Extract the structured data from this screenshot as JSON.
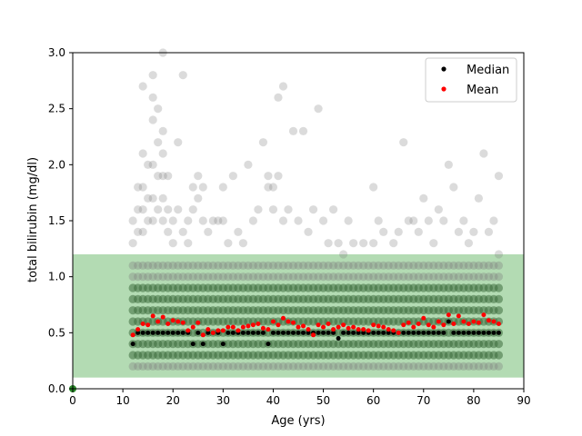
{
  "chart_data": {
    "type": "scatter",
    "title": "",
    "xlabel": "Age (yrs)",
    "ylabel": "total bilirubin (mg/dl)",
    "xlim": [
      0,
      90
    ],
    "ylim": [
      0,
      3.0
    ],
    "xticks": [
      "0",
      "10",
      "20",
      "30",
      "40",
      "50",
      "60",
      "70",
      "80",
      "90"
    ],
    "yticks": [
      "0.0",
      "0.5",
      "1.0",
      "1.5",
      "2.0",
      "2.5",
      "3.0"
    ],
    "reference_band": {
      "y_low": 0.1,
      "y_high": 1.2,
      "color": "#b3dbb3"
    },
    "grid": false,
    "legend_position": "top-right",
    "colors": {
      "raw_points": "#7f7f7f",
      "dense_points": "#3d6b3d",
      "median": "#000000",
      "mean": "#ff0000"
    },
    "ages": [
      12,
      13,
      14,
      15,
      16,
      17,
      18,
      19,
      20,
      21,
      22,
      23,
      24,
      25,
      26,
      27,
      28,
      29,
      30,
      31,
      32,
      33,
      34,
      35,
      36,
      37,
      38,
      39,
      40,
      41,
      42,
      43,
      44,
      45,
      46,
      47,
      48,
      49,
      50,
      51,
      52,
      53,
      54,
      55,
      56,
      57,
      58,
      59,
      60,
      61,
      62,
      63,
      64,
      65,
      66,
      67,
      68,
      69,
      70,
      71,
      72,
      73,
      74,
      75,
      76,
      77,
      78,
      79,
      80,
      81,
      82,
      83,
      84,
      85
    ],
    "raw_levels": [
      0.2,
      0.3,
      0.4,
      0.5,
      0.6,
      0.7,
      0.8,
      0.9,
      1.0,
      1.1
    ],
    "outliers": [
      [
        12,
        1.5
      ],
      [
        12,
        1.3
      ],
      [
        13,
        1.8
      ],
      [
        13,
        1.6
      ],
      [
        13,
        1.4
      ],
      [
        14,
        2.7
      ],
      [
        14,
        2.1
      ],
      [
        14,
        1.8
      ],
      [
        14,
        1.6
      ],
      [
        14,
        1.4
      ],
      [
        15,
        2.0
      ],
      [
        15,
        1.7
      ],
      [
        15,
        1.5
      ],
      [
        16,
        2.8
      ],
      [
        16,
        2.6
      ],
      [
        16,
        2.4
      ],
      [
        16,
        2.0
      ],
      [
        16,
        1.7
      ],
      [
        16,
        1.5
      ],
      [
        17,
        2.5
      ],
      [
        17,
        2.2
      ],
      [
        17,
        1.9
      ],
      [
        17,
        1.6
      ],
      [
        18,
        3.0
      ],
      [
        18,
        2.3
      ],
      [
        18,
        2.1
      ],
      [
        18,
        1.9
      ],
      [
        18,
        1.7
      ],
      [
        18,
        1.5
      ],
      [
        19,
        1.9
      ],
      [
        19,
        1.6
      ],
      [
        19,
        1.4
      ],
      [
        20,
        1.5
      ],
      [
        20,
        1.3
      ],
      [
        21,
        2.2
      ],
      [
        21,
        1.6
      ],
      [
        22,
        2.8
      ],
      [
        22,
        1.4
      ],
      [
        23,
        1.5
      ],
      [
        23,
        1.3
      ],
      [
        24,
        1.8
      ],
      [
        24,
        1.6
      ],
      [
        25,
        1.9
      ],
      [
        25,
        1.7
      ],
      [
        26,
        1.8
      ],
      [
        26,
        1.5
      ],
      [
        27,
        1.4
      ],
      [
        28,
        1.5
      ],
      [
        29,
        1.5
      ],
      [
        30,
        1.5
      ],
      [
        30,
        1.8
      ],
      [
        31,
        1.3
      ],
      [
        32,
        1.9
      ],
      [
        33,
        1.4
      ],
      [
        34,
        1.3
      ],
      [
        35,
        2.0
      ],
      [
        36,
        1.5
      ],
      [
        37,
        1.6
      ],
      [
        38,
        2.2
      ],
      [
        39,
        1.8
      ],
      [
        39,
        1.9
      ],
      [
        40,
        1.8
      ],
      [
        40,
        1.6
      ],
      [
        41,
        2.6
      ],
      [
        41,
        1.9
      ],
      [
        42,
        2.7
      ],
      [
        42,
        1.5
      ],
      [
        43,
        1.6
      ],
      [
        44,
        2.3
      ],
      [
        45,
        1.5
      ],
      [
        46,
        2.3
      ],
      [
        47,
        1.4
      ],
      [
        48,
        1.6
      ],
      [
        49,
        2.5
      ],
      [
        50,
        1.5
      ],
      [
        51,
        1.3
      ],
      [
        52,
        1.6
      ],
      [
        53,
        1.3
      ],
      [
        54,
        1.2
      ],
      [
        55,
        1.5
      ],
      [
        56,
        1.3
      ],
      [
        58,
        1.3
      ],
      [
        60,
        1.8
      ],
      [
        60,
        1.3
      ],
      [
        61,
        1.5
      ],
      [
        62,
        1.4
      ],
      [
        64,
        1.3
      ],
      [
        65,
        1.4
      ],
      [
        66,
        2.2
      ],
      [
        67,
        1.5
      ],
      [
        68,
        1.5
      ],
      [
        69,
        1.4
      ],
      [
        70,
        1.7
      ],
      [
        71,
        1.5
      ],
      [
        72,
        1.3
      ],
      [
        73,
        1.6
      ],
      [
        74,
        1.5
      ],
      [
        75,
        2.0
      ],
      [
        76,
        1.8
      ],
      [
        77,
        1.4
      ],
      [
        78,
        1.5
      ],
      [
        79,
        1.3
      ],
      [
        80,
        1.4
      ],
      [
        81,
        1.7
      ],
      [
        82,
        2.1
      ],
      [
        83,
        1.4
      ],
      [
        84,
        1.5
      ],
      [
        85,
        1.9
      ],
      [
        85,
        1.2
      ]
    ],
    "series": [
      {
        "name": "Median",
        "x": [
          12,
          13,
          14,
          15,
          16,
          17,
          18,
          19,
          20,
          21,
          22,
          23,
          24,
          25,
          26,
          27,
          28,
          29,
          30,
          31,
          32,
          33,
          34,
          35,
          36,
          37,
          38,
          39,
          40,
          41,
          42,
          43,
          44,
          45,
          46,
          47,
          48,
          49,
          50,
          51,
          52,
          53,
          54,
          55,
          56,
          57,
          58,
          59,
          60,
          61,
          62,
          63,
          64,
          65,
          66,
          67,
          68,
          69,
          70,
          71,
          72,
          73,
          74,
          75,
          76,
          77,
          78,
          79,
          80,
          81,
          82,
          83,
          84,
          85
        ],
        "y": [
          0.4,
          0.5,
          0.5,
          0.5,
          0.5,
          0.5,
          0.5,
          0.5,
          0.5,
          0.5,
          0.5,
          0.5,
          0.4,
          0.5,
          0.4,
          0.5,
          0.5,
          0.5,
          0.4,
          0.5,
          0.5,
          0.5,
          0.5,
          0.5,
          0.5,
          0.5,
          0.5,
          0.4,
          0.5,
          0.5,
          0.5,
          0.5,
          0.5,
          0.5,
          0.5,
          0.5,
          0.5,
          0.5,
          0.5,
          0.5,
          0.5,
          0.45,
          0.5,
          0.5,
          0.5,
          0.5,
          0.5,
          0.5,
          0.5,
          0.5,
          0.5,
          0.5,
          0.5,
          0.5,
          0.5,
          0.5,
          0.5,
          0.5,
          0.5,
          0.5,
          0.5,
          0.5,
          0.5,
          0.6,
          0.5,
          0.5,
          0.5,
          0.5,
          0.5,
          0.5,
          0.5,
          0.5,
          0.5,
          0.5
        ]
      },
      {
        "name": "Mean",
        "x": [
          12,
          13,
          14,
          15,
          16,
          17,
          18,
          19,
          20,
          21,
          22,
          23,
          24,
          25,
          26,
          27,
          28,
          29,
          30,
          31,
          32,
          33,
          34,
          35,
          36,
          37,
          38,
          39,
          40,
          41,
          42,
          43,
          44,
          45,
          46,
          47,
          48,
          49,
          50,
          51,
          52,
          53,
          54,
          55,
          56,
          57,
          58,
          59,
          60,
          61,
          62,
          63,
          64,
          65,
          66,
          67,
          68,
          69,
          70,
          71,
          72,
          73,
          74,
          75,
          76,
          77,
          78,
          79,
          80,
          81,
          82,
          83,
          84,
          85
        ],
        "y": [
          0.48,
          0.53,
          0.58,
          0.57,
          0.65,
          0.6,
          0.64,
          0.58,
          0.61,
          0.6,
          0.59,
          0.52,
          0.55,
          0.59,
          0.48,
          0.53,
          0.5,
          0.52,
          0.52,
          0.55,
          0.55,
          0.52,
          0.55,
          0.56,
          0.57,
          0.58,
          0.54,
          0.53,
          0.6,
          0.57,
          0.63,
          0.6,
          0.59,
          0.55,
          0.56,
          0.53,
          0.48,
          0.57,
          0.55,
          0.58,
          0.53,
          0.55,
          0.57,
          0.54,
          0.55,
          0.53,
          0.53,
          0.52,
          0.57,
          0.56,
          0.55,
          0.53,
          0.52,
          0.5,
          0.57,
          0.59,
          0.55,
          0.58,
          0.63,
          0.57,
          0.55,
          0.6,
          0.57,
          0.66,
          0.58,
          0.65,
          0.6,
          0.58,
          0.6,
          0.59,
          0.66,
          0.61,
          0.6,
          0.58
        ]
      }
    ]
  }
}
